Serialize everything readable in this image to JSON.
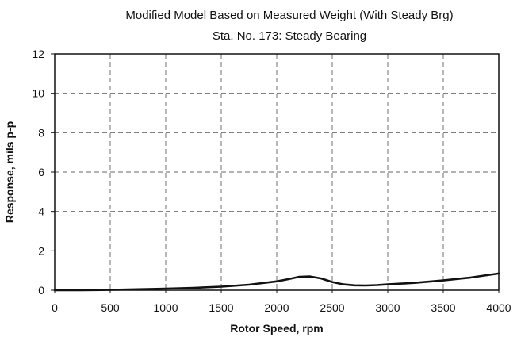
{
  "chart_data": {
    "type": "line",
    "title": "Modified Model Based on Measured Weight (With Steady Brg)",
    "subtitle": "Sta. No. 173: Steady Bearing",
    "xlabel": "Rotor Speed, rpm",
    "ylabel": "Response, mils p-p",
    "xlim": [
      0,
      4000
    ],
    "ylim": [
      0,
      12
    ],
    "xticks": [
      0,
      500,
      1000,
      1500,
      2000,
      2500,
      3000,
      3500,
      4000
    ],
    "yticks": [
      0,
      2,
      4,
      6,
      8,
      10,
      12
    ],
    "grid": true,
    "grid_style": "dashed",
    "legend": "none",
    "series": [
      {
        "color": "#111111",
        "x": [
          0,
          250,
          500,
          750,
          1000,
          1250,
          1500,
          1750,
          2000,
          2100,
          2200,
          2300,
          2400,
          2500,
          2600,
          2700,
          2800,
          2900,
          3000,
          3250,
          3500,
          3750,
          4000
        ],
        "y": [
          0.0,
          0.0,
          0.02,
          0.05,
          0.08,
          0.12,
          0.18,
          0.28,
          0.45,
          0.56,
          0.68,
          0.7,
          0.6,
          0.42,
          0.3,
          0.25,
          0.24,
          0.26,
          0.3,
          0.38,
          0.5,
          0.65,
          0.85
        ]
      }
    ]
  }
}
